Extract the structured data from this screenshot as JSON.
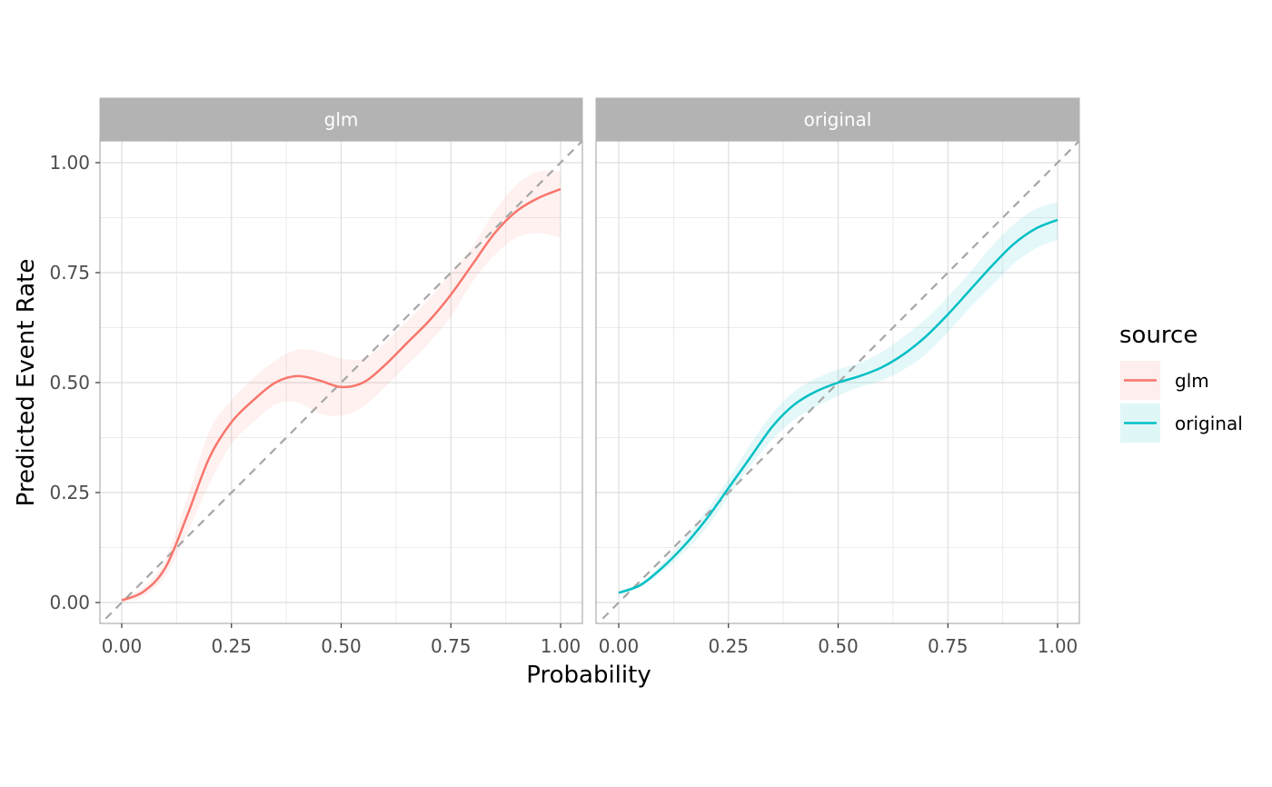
{
  "chart_data": {
    "type": "line",
    "xlabel": "Probability",
    "ylabel": "Predicted Event Rate",
    "xlim": [
      0,
      1
    ],
    "ylim": [
      0,
      1
    ],
    "x_ticks": [
      "0.00",
      "0.25",
      "0.50",
      "0.75",
      "1.00"
    ],
    "y_ticks": [
      "0.00",
      "0.25",
      "0.50",
      "0.75",
      "1.00"
    ],
    "grid": true,
    "reference_line": "dashed y = x",
    "legend": {
      "title": "source",
      "position": "right",
      "entries": [
        "glm",
        "original"
      ]
    },
    "panels": [
      {
        "name": "glm",
        "color": "#F8766D",
        "band_color": "#F8766D",
        "x": [
          0.0,
          0.05,
          0.1,
          0.15,
          0.2,
          0.25,
          0.3,
          0.35,
          0.4,
          0.45,
          0.5,
          0.55,
          0.6,
          0.65,
          0.7,
          0.75,
          0.8,
          0.85,
          0.9,
          0.95,
          1.0
        ],
        "y": [
          0.005,
          0.025,
          0.08,
          0.2,
          0.33,
          0.41,
          0.46,
          0.5,
          0.515,
          0.505,
          0.49,
          0.5,
          0.54,
          0.59,
          0.64,
          0.7,
          0.77,
          0.84,
          0.89,
          0.92,
          0.94
        ],
        "lower": [
          0.0,
          0.015,
          0.06,
          0.16,
          0.27,
          0.36,
          0.41,
          0.45,
          0.455,
          0.43,
          0.425,
          0.445,
          0.49,
          0.54,
          0.59,
          0.65,
          0.73,
          0.79,
          0.83,
          0.84,
          0.83
        ],
        "upper": [
          0.01,
          0.035,
          0.1,
          0.24,
          0.39,
          0.46,
          0.51,
          0.55,
          0.575,
          0.57,
          0.555,
          0.555,
          0.59,
          0.64,
          0.69,
          0.75,
          0.81,
          0.89,
          0.95,
          0.98,
          0.98
        ]
      },
      {
        "name": "original",
        "color": "#00BFC4",
        "band_color": "#00BFC4",
        "x": [
          0.0,
          0.05,
          0.1,
          0.15,
          0.2,
          0.25,
          0.3,
          0.35,
          0.4,
          0.45,
          0.5,
          0.55,
          0.6,
          0.65,
          0.7,
          0.75,
          0.8,
          0.85,
          0.9,
          0.95,
          1.0
        ],
        "y": [
          0.022,
          0.04,
          0.08,
          0.13,
          0.19,
          0.26,
          0.33,
          0.4,
          0.45,
          0.48,
          0.5,
          0.515,
          0.535,
          0.565,
          0.605,
          0.655,
          0.71,
          0.765,
          0.815,
          0.85,
          0.87
        ],
        "lower": [
          0.018,
          0.035,
          0.07,
          0.115,
          0.17,
          0.24,
          0.31,
          0.37,
          0.415,
          0.445,
          0.47,
          0.49,
          0.505,
          0.53,
          0.565,
          0.615,
          0.67,
          0.72,
          0.77,
          0.805,
          0.825
        ],
        "upper": [
          0.026,
          0.045,
          0.09,
          0.145,
          0.21,
          0.28,
          0.36,
          0.43,
          0.48,
          0.51,
          0.53,
          0.545,
          0.57,
          0.605,
          0.645,
          0.695,
          0.75,
          0.81,
          0.86,
          0.895,
          0.91
        ]
      }
    ]
  }
}
